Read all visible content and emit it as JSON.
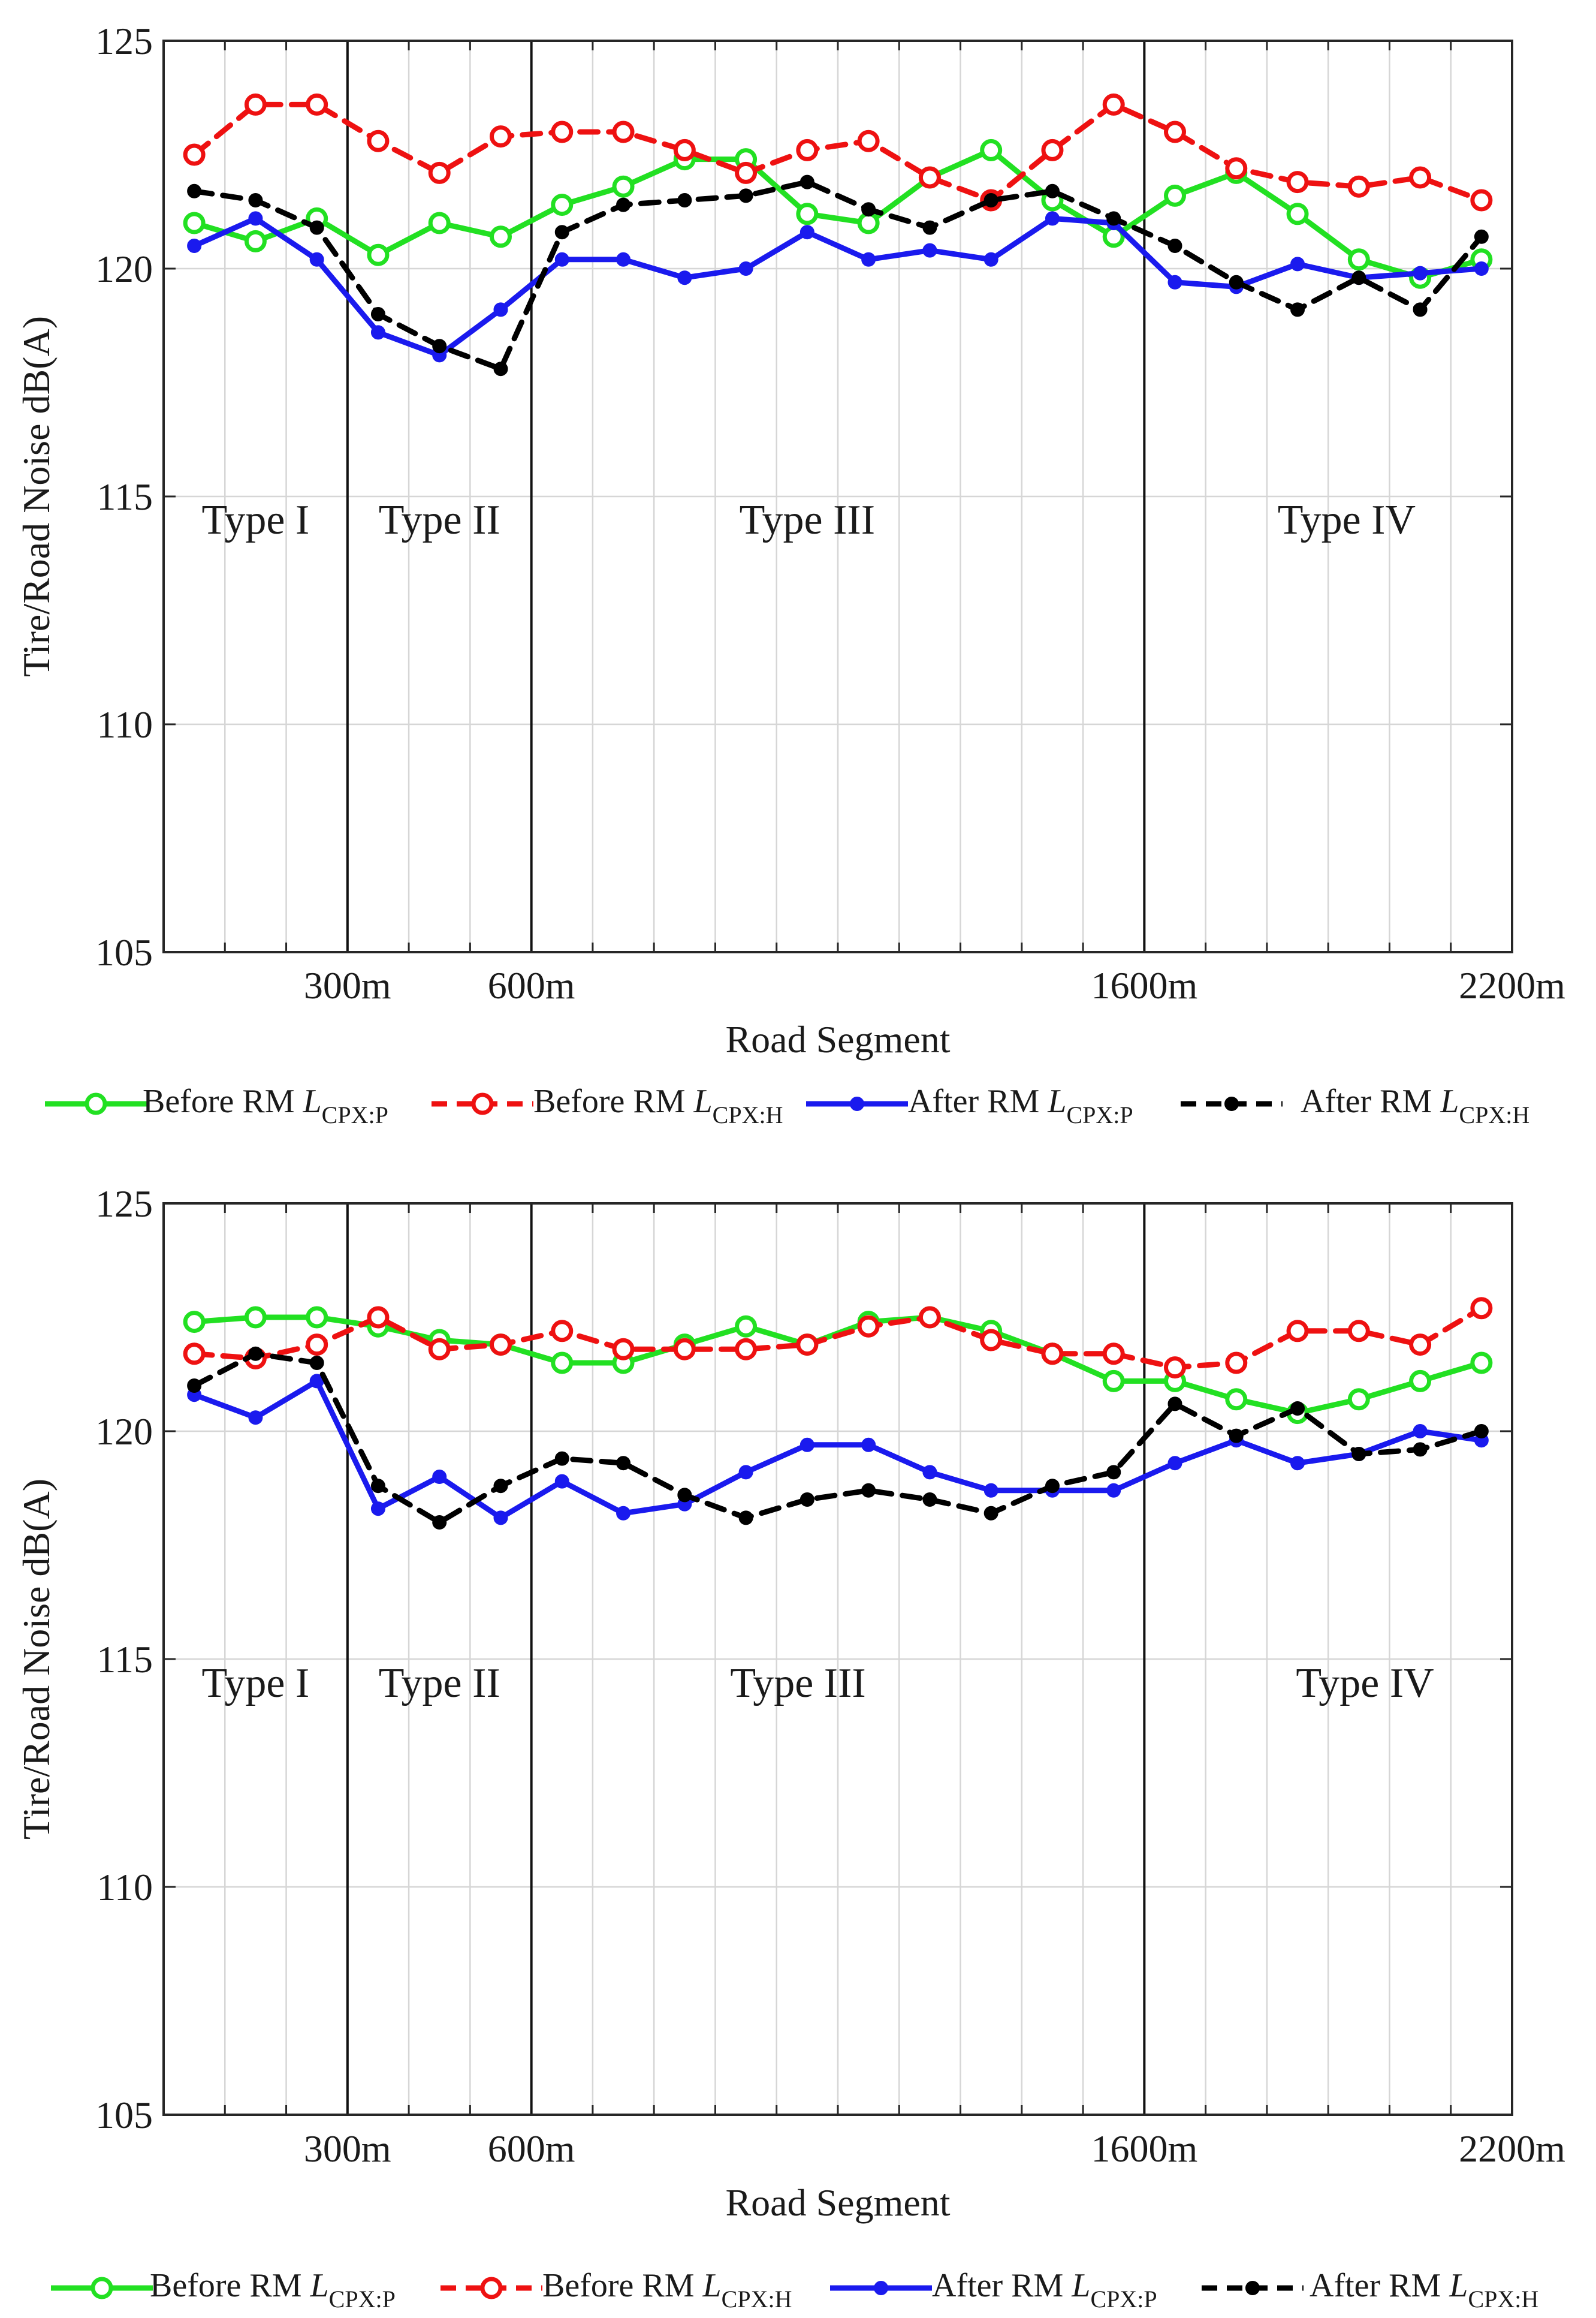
{
  "colors": {
    "before_p": "#22e022",
    "before_h": "#ee1111",
    "after_p": "#1a1aee",
    "after_h": "#000000",
    "grid": "#d6d6d6",
    "axis": "#262626"
  },
  "chart_data": [
    {
      "type": "line",
      "xlabel": "Road Segment",
      "ylabel": "Tire/Road Noise dB(A)",
      "ylim": [
        105,
        125
      ],
      "xlim": [
        0,
        2200
      ],
      "yticks": [
        "105",
        "110",
        "115",
        "120",
        "125"
      ],
      "xticks": [
        {
          "value": 300,
          "label": "300m"
        },
        {
          "value": 600,
          "label": "600m"
        },
        {
          "value": 1600,
          "label": "1600m"
        },
        {
          "value": 2200,
          "label": "2200m"
        }
      ],
      "boundaries": [
        300,
        600,
        1600
      ],
      "regions": [
        {
          "label": "Type I",
          "x": 150
        },
        {
          "label": "Type II",
          "x": 450
        },
        {
          "label": "Type III",
          "x": 1050
        },
        {
          "label": "Type IV",
          "x": 1930
        }
      ],
      "x": [
        50,
        150,
        250,
        350,
        450,
        550,
        650,
        750,
        850,
        950,
        1050,
        1150,
        1250,
        1350,
        1450,
        1550,
        1650,
        1750,
        1850,
        1950,
        2050,
        2150
      ],
      "series": [
        {
          "name": "Before RM L_CPX:P",
          "key": "before_p",
          "values": [
            121.0,
            120.6,
            121.1,
            120.3,
            121.0,
            120.7,
            121.4,
            121.8,
            122.4,
            122.4,
            121.2,
            121.0,
            122.0,
            122.6,
            121.5,
            120.7,
            121.6,
            122.1,
            121.2,
            120.2,
            119.8,
            120.2
          ]
        },
        {
          "name": "Before RM L_CPX:H",
          "key": "before_h",
          "values": [
            122.5,
            123.6,
            123.6,
            122.8,
            122.1,
            122.9,
            123.0,
            123.0,
            122.6,
            122.1,
            122.6,
            122.8,
            122.0,
            121.5,
            122.6,
            123.6,
            123.0,
            122.2,
            121.9,
            121.8,
            122.0,
            121.5
          ]
        },
        {
          "name": "After RM L_CPX:P",
          "key": "after_p",
          "values": [
            120.5,
            121.1,
            120.2,
            118.6,
            118.1,
            119.1,
            120.2,
            120.2,
            119.8,
            120.0,
            120.8,
            120.2,
            120.4,
            120.2,
            121.1,
            121.0,
            119.7,
            119.6,
            120.1,
            119.8,
            119.9,
            120.0
          ]
        },
        {
          "name": "After RM L_CPX:H",
          "key": "after_h",
          "values": [
            121.7,
            121.5,
            120.9,
            119.0,
            118.3,
            117.8,
            120.8,
            121.4,
            121.5,
            121.6,
            121.9,
            121.3,
            120.9,
            121.5,
            121.7,
            121.1,
            120.5,
            119.7,
            119.1,
            119.8,
            119.1,
            120.7
          ]
        }
      ]
    },
    {
      "type": "line",
      "xlabel": "Road Segment",
      "ylabel": "Tire/Road Noise dB(A)",
      "ylim": [
        105,
        125
      ],
      "xlim": [
        0,
        2200
      ],
      "yticks": [
        "105",
        "110",
        "115",
        "120",
        "125"
      ],
      "xticks": [
        {
          "value": 300,
          "label": "300m"
        },
        {
          "value": 600,
          "label": "600m"
        },
        {
          "value": 1600,
          "label": "1600m"
        },
        {
          "value": 2200,
          "label": "2200m"
        }
      ],
      "boundaries": [
        300,
        600,
        1600
      ],
      "regions": [
        {
          "label": "Type I",
          "x": 150
        },
        {
          "label": "Type II",
          "x": 450
        },
        {
          "label": "Type III",
          "x": 1035
        },
        {
          "label": "Type IV",
          "x": 1960
        }
      ],
      "x": [
        50,
        150,
        250,
        350,
        450,
        550,
        650,
        750,
        850,
        950,
        1050,
        1150,
        1250,
        1350,
        1450,
        1550,
        1650,
        1750,
        1850,
        1950,
        2050,
        2150
      ],
      "series": [
        {
          "name": "Before RM L_CPX:P",
          "key": "before_p",
          "values": [
            122.4,
            122.5,
            122.5,
            122.3,
            122.0,
            121.9,
            121.5,
            121.5,
            121.9,
            122.3,
            121.9,
            122.4,
            122.5,
            122.2,
            121.7,
            121.1,
            121.1,
            120.7,
            120.4,
            120.7,
            121.1,
            121.5
          ]
        },
        {
          "name": "Before RM L_CPX:H",
          "key": "before_h",
          "values": [
            121.7,
            121.6,
            121.9,
            122.5,
            121.8,
            121.9,
            122.2,
            121.8,
            121.8,
            121.8,
            121.9,
            122.3,
            122.5,
            122.0,
            121.7,
            121.7,
            121.4,
            121.5,
            122.2,
            122.2,
            121.9,
            122.7
          ]
        },
        {
          "name": "After RM L_CPX:P",
          "key": "after_p",
          "values": [
            120.8,
            120.3,
            121.1,
            118.3,
            119.0,
            118.1,
            118.9,
            118.2,
            118.4,
            119.1,
            119.7,
            119.7,
            119.1,
            118.7,
            118.7,
            118.7,
            119.3,
            119.8,
            119.3,
            119.5,
            120.0,
            119.8
          ]
        },
        {
          "name": "After RM L_CPX:H",
          "key": "after_h",
          "values": [
            121.0,
            121.7,
            121.5,
            118.8,
            118.0,
            118.8,
            119.4,
            119.3,
            118.6,
            118.1,
            118.5,
            118.7,
            118.5,
            118.2,
            118.8,
            119.1,
            120.6,
            119.9,
            120.5,
            119.5,
            119.6,
            120.0
          ]
        }
      ]
    }
  ],
  "legend": [
    {
      "key": "before_p",
      "prefix": "Before RM ",
      "symbol": "L",
      "subscript": "CPX:P"
    },
    {
      "key": "before_h",
      "prefix": "Before RM ",
      "symbol": "L",
      "subscript": "CPX:H"
    },
    {
      "key": "after_p",
      "prefix": "After RM ",
      "symbol": "L",
      "subscript": "CPX:P"
    },
    {
      "key": "after_h",
      "prefix": "After RM ",
      "symbol": "L",
      "subscript": "CPX:H"
    }
  ]
}
